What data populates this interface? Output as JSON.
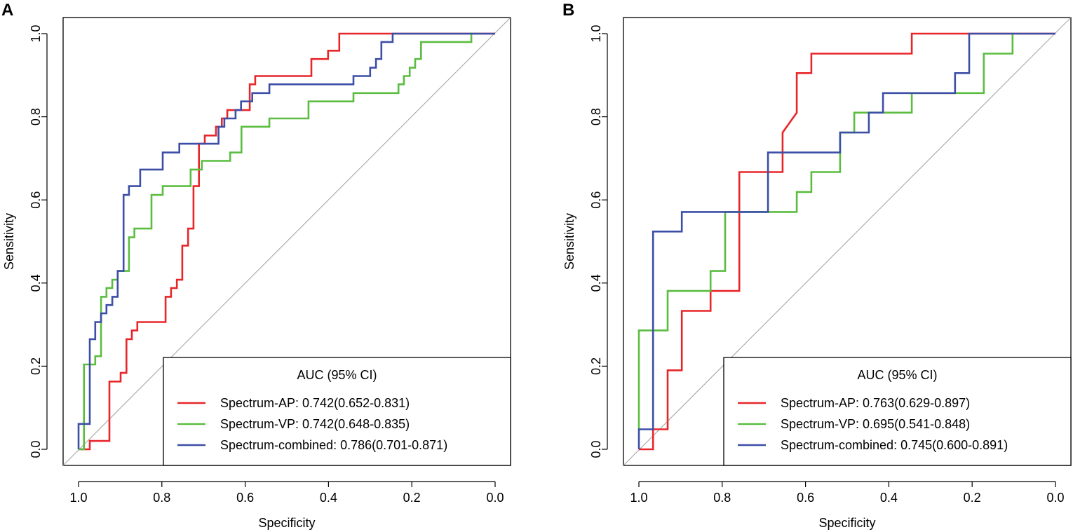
{
  "colors": {
    "ap": "#e8262a",
    "vp": "#5bbd40",
    "combined": "#3c4ea6",
    "diagonal": "#a6a6a6",
    "axis": "#000000"
  },
  "chart_data": [
    {
      "type": "line",
      "panel_label": "A",
      "xlabel": "Specificity",
      "ylabel": "Sensitivity",
      "xlim": [
        1.0,
        0.0
      ],
      "ylim": [
        0.0,
        1.0
      ],
      "x_ticks": [
        "1.0",
        "0.8",
        "0.6",
        "0.4",
        "0.2",
        "0.0"
      ],
      "y_ticks": [
        "0.0",
        "0.2",
        "0.4",
        "0.6",
        "0.8",
        "1.0"
      ],
      "legend_title": "AUC (95% CI)",
      "legend_position": "bottom-right",
      "reference_line": "diagonal",
      "series": [
        {
          "key": "ap",
          "label": "Spectrum-AP: 0.742(0.652-0.831)",
          "specificity": [
            1.0,
            0.973,
            0.973,
            0.926,
            0.926,
            0.899,
            0.899,
            0.885,
            0.885,
            0.872,
            0.872,
            0.859,
            0.859,
            0.845,
            0.845,
            0.791,
            0.791,
            0.778,
            0.778,
            0.764,
            0.764,
            0.751,
            0.751,
            0.737,
            0.737,
            0.724,
            0.724,
            0.711,
            0.711,
            0.697,
            0.697,
            0.67,
            0.67,
            0.656,
            0.656,
            0.643,
            0.643,
            0.616,
            0.616,
            0.589,
            0.589,
            0.576,
            0.576,
            0.441,
            0.441,
            0.401,
            0.401,
            0.374,
            0.374,
            0.0
          ],
          "sensitivity": [
            0.0,
            0.0,
            0.02,
            0.02,
            0.163,
            0.163,
            0.184,
            0.184,
            0.265,
            0.265,
            0.286,
            0.286,
            0.306,
            0.306,
            0.306,
            0.306,
            0.367,
            0.367,
            0.388,
            0.388,
            0.408,
            0.408,
            0.49,
            0.49,
            0.531,
            0.531,
            0.633,
            0.633,
            0.735,
            0.735,
            0.755,
            0.755,
            0.776,
            0.776,
            0.796,
            0.796,
            0.816,
            0.816,
            0.816,
            0.816,
            0.878,
            0.878,
            0.898,
            0.898,
            0.939,
            0.939,
            0.959,
            0.959,
            1.0,
            1.0
          ]
        },
        {
          "key": "vp",
          "label": "Spectrum-VP: 0.742(0.648-0.835)",
          "specificity": [
            1.0,
            0.987,
            0.987,
            0.987,
            0.987,
            0.96,
            0.96,
            0.946,
            0.946,
            0.933,
            0.933,
            0.919,
            0.919,
            0.906,
            0.906,
            0.879,
            0.879,
            0.866,
            0.866,
            0.852,
            0.852,
            0.825,
            0.825,
            0.798,
            0.798,
            0.731,
            0.731,
            0.704,
            0.704,
            0.677,
            0.677,
            0.636,
            0.636,
            0.609,
            0.609,
            0.542,
            0.542,
            0.448,
            0.448,
            0.34,
            0.34,
            0.232,
            0.232,
            0.219,
            0.219,
            0.205,
            0.205,
            0.192,
            0.192,
            0.178,
            0.178,
            0.057,
            0.057,
            0.04
          ],
          "sensitivity": [
            0.0,
            0.0,
            0.1,
            0.1,
            0.204,
            0.204,
            0.224,
            0.224,
            0.367,
            0.367,
            0.388,
            0.388,
            0.408,
            0.408,
            0.429,
            0.429,
            0.51,
            0.51,
            0.531,
            0.531,
            0.531,
            0.531,
            0.612,
            0.612,
            0.633,
            0.633,
            0.673,
            0.673,
            0.694,
            0.694,
            0.694,
            0.694,
            0.714,
            0.714,
            0.776,
            0.776,
            0.796,
            0.796,
            0.837,
            0.837,
            0.857,
            0.857,
            0.878,
            0.878,
            0.898,
            0.898,
            0.918,
            0.918,
            0.939,
            0.939,
            0.98,
            0.98,
            1.0,
            1.0
          ]
        },
        {
          "key": "combined",
          "label": "Spectrum-combined: 0.786(0.701-0.871)",
          "specificity": [
            1.0,
            1.0,
            0.973,
            0.973,
            0.96,
            0.96,
            0.946,
            0.946,
            0.933,
            0.933,
            0.919,
            0.919,
            0.906,
            0.906,
            0.892,
            0.892,
            0.879,
            0.879,
            0.852,
            0.852,
            0.839,
            0.839,
            0.798,
            0.798,
            0.758,
            0.758,
            0.731,
            0.731,
            0.664,
            0.664,
            0.65,
            0.65,
            0.623,
            0.623,
            0.61,
            0.61,
            0.583,
            0.583,
            0.542,
            0.542,
            0.502,
            0.502,
            0.34,
            0.34,
            0.3,
            0.3,
            0.286,
            0.286,
            0.273,
            0.273,
            0.246,
            0.246,
            0.219,
            0.219,
            0.0
          ],
          "sensitivity": [
            0.0,
            0.061,
            0.061,
            0.265,
            0.265,
            0.306,
            0.306,
            0.327,
            0.327,
            0.347,
            0.347,
            0.367,
            0.367,
            0.429,
            0.429,
            0.612,
            0.612,
            0.633,
            0.633,
            0.673,
            0.673,
            0.673,
            0.673,
            0.714,
            0.714,
            0.735,
            0.735,
            0.735,
            0.735,
            0.776,
            0.776,
            0.796,
            0.796,
            0.816,
            0.816,
            0.837,
            0.837,
            0.857,
            0.857,
            0.878,
            0.878,
            0.878,
            0.878,
            0.898,
            0.898,
            0.918,
            0.918,
            0.939,
            0.939,
            0.98,
            0.98,
            1.0,
            1.0,
            1.0,
            1.0
          ]
        }
      ]
    },
    {
      "type": "line",
      "panel_label": "B",
      "xlabel": "Specificity",
      "ylabel": "Sensitivity",
      "xlim": [
        1.0,
        0.0
      ],
      "ylim": [
        0.0,
        1.0
      ],
      "x_ticks": [
        "1.0",
        "0.8",
        "0.6",
        "0.4",
        "0.2",
        "0.0"
      ],
      "y_ticks": [
        "0.0",
        "0.2",
        "0.4",
        "0.6",
        "0.8",
        "1.0"
      ],
      "legend_title": "AUC (95% CI)",
      "legend_position": "bottom-right",
      "reference_line": "diagonal",
      "series": [
        {
          "key": "ap",
          "label": "Spectrum-AP: 0.763(0.629-0.897)",
          "specificity": [
            1.0,
            0.966,
            0.966,
            0.931,
            0.931,
            0.897,
            0.897,
            0.828,
            0.828,
            0.759,
            0.759,
            0.655,
            0.655,
            0.621,
            0.621,
            0.586,
            0.586,
            0.345,
            0.345,
            0.0
          ],
          "sensitivity": [
            0.0,
            0.0,
            0.048,
            0.048,
            0.19,
            0.19,
            0.333,
            0.333,
            0.381,
            0.381,
            0.667,
            0.667,
            0.762,
            0.81,
            0.905,
            0.905,
            0.952,
            0.952,
            1.0,
            1.0
          ]
        },
        {
          "key": "vp",
          "label": "Spectrum-VP: 0.695(0.541-0.848)",
          "specificity": [
            1.0,
            1.0,
            0.931,
            0.931,
            0.828,
            0.828,
            0.793,
            0.793,
            0.69,
            0.69,
            0.621,
            0.621,
            0.586,
            0.586,
            0.517,
            0.517,
            0.483,
            0.483,
            0.345,
            0.345,
            0.241,
            0.241,
            0.172,
            0.172,
            0.103,
            0.103
          ],
          "sensitivity": [
            0.048,
            0.286,
            0.286,
            0.381,
            0.381,
            0.429,
            0.429,
            0.571,
            0.571,
            0.571,
            0.571,
            0.619,
            0.619,
            0.667,
            0.667,
            0.762,
            0.762,
            0.81,
            0.81,
            0.857,
            0.857,
            0.857,
            0.857,
            0.952,
            0.952,
            1.0
          ]
        },
        {
          "key": "combined",
          "label": "Spectrum-combined: 0.745(0.600-0.891)",
          "specificity": [
            1.0,
            1.0,
            0.966,
            0.966,
            0.897,
            0.897,
            0.69,
            0.69,
            0.517,
            0.517,
            0.448,
            0.448,
            0.414,
            0.414,
            0.241,
            0.241,
            0.207,
            0.207,
            0.0
          ],
          "sensitivity": [
            0.0,
            0.048,
            0.048,
            0.524,
            0.524,
            0.571,
            0.571,
            0.714,
            0.714,
            0.762,
            0.762,
            0.81,
            0.81,
            0.857,
            0.857,
            0.905,
            0.905,
            1.0,
            1.0
          ]
        }
      ]
    }
  ]
}
